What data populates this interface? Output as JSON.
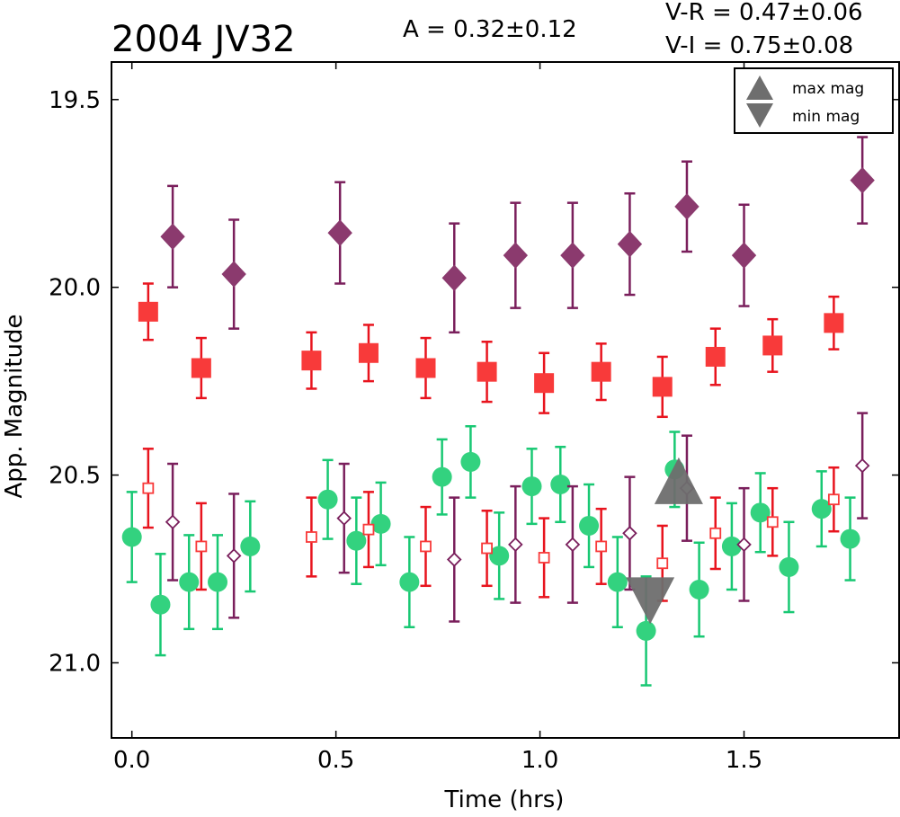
{
  "chart_data": {
    "type": "scatter",
    "title": "2004 JV32",
    "annotations": {
      "amplitude": "A  = 0.32±0.12",
      "v_r": "V-R = 0.47±0.06",
      "v_i": "V-I  = 0.75±0.08"
    },
    "xlabel": "Time (hrs)",
    "ylabel": "App. Magnitude",
    "xlim": [
      -0.05,
      1.88
    ],
    "ylim": [
      21.2,
      19.4
    ],
    "y_inverted": true,
    "xticks": [
      "0.0",
      "0.5",
      "1.0",
      "1.5"
    ],
    "xtick_values": [
      0.0,
      0.5,
      1.0,
      1.5
    ],
    "yticks": [
      "19.5",
      "20.0",
      "20.5",
      "21.0"
    ],
    "ytick_values": [
      19.5,
      20.0,
      20.5,
      21.0
    ],
    "legend": {
      "position": "top-right",
      "entries": [
        {
          "label": "max mag",
          "marker": "triangle-up"
        },
        {
          "label": "min mag",
          "marker": "triangle-down"
        }
      ]
    },
    "colors": {
      "I": "#7a1f5c",
      "I_face": "#8b3a6e",
      "R": "#e8141e",
      "R_face": "#f83a3a",
      "V": "#18c873",
      "V_face": "#33d27f",
      "extrema": "#6e6e6e"
    },
    "series": [
      {
        "band": "I",
        "marker": "diamond-filled",
        "points": [
          {
            "x": 0.1,
            "y": 19.865,
            "err": 0.135
          },
          {
            "x": 0.25,
            "y": 19.965,
            "err": 0.145
          },
          {
            "x": 0.51,
            "y": 19.855,
            "err": 0.135
          },
          {
            "x": 0.79,
            "y": 19.975,
            "err": 0.145
          },
          {
            "x": 0.94,
            "y": 19.915,
            "err": 0.14
          },
          {
            "x": 1.08,
            "y": 19.915,
            "err": 0.14
          },
          {
            "x": 1.22,
            "y": 19.885,
            "err": 0.135
          },
          {
            "x": 1.36,
            "y": 19.785,
            "err": 0.12
          },
          {
            "x": 1.5,
            "y": 19.915,
            "err": 0.135
          },
          {
            "x": 1.79,
            "y": 19.715,
            "err": 0.115
          }
        ]
      },
      {
        "band": "R",
        "marker": "square-filled",
        "points": [
          {
            "x": 0.04,
            "y": 20.065,
            "err": 0.075
          },
          {
            "x": 0.17,
            "y": 20.215,
            "err": 0.08
          },
          {
            "x": 0.44,
            "y": 20.195,
            "err": 0.075
          },
          {
            "x": 0.58,
            "y": 20.175,
            "err": 0.075
          },
          {
            "x": 0.72,
            "y": 20.215,
            "err": 0.08
          },
          {
            "x": 0.87,
            "y": 20.225,
            "err": 0.08
          },
          {
            "x": 1.01,
            "y": 20.255,
            "err": 0.08
          },
          {
            "x": 1.15,
            "y": 20.225,
            "err": 0.075
          },
          {
            "x": 1.3,
            "y": 20.265,
            "err": 0.08
          },
          {
            "x": 1.43,
            "y": 20.185,
            "err": 0.075
          },
          {
            "x": 1.57,
            "y": 20.155,
            "err": 0.07
          },
          {
            "x": 1.72,
            "y": 20.095,
            "err": 0.07
          }
        ]
      },
      {
        "band": "V",
        "marker": "circle-filled",
        "points": [
          {
            "x": 0.0,
            "y": 20.665,
            "err": 0.12
          },
          {
            "x": 0.07,
            "y": 20.845,
            "err": 0.135
          },
          {
            "x": 0.14,
            "y": 20.785,
            "err": 0.125
          },
          {
            "x": 0.21,
            "y": 20.785,
            "err": 0.125
          },
          {
            "x": 0.29,
            "y": 20.69,
            "err": 0.12
          },
          {
            "x": 0.48,
            "y": 20.565,
            "err": 0.105
          },
          {
            "x": 0.55,
            "y": 20.675,
            "err": 0.115
          },
          {
            "x": 0.61,
            "y": 20.63,
            "err": 0.11
          },
          {
            "x": 0.68,
            "y": 20.785,
            "err": 0.12
          },
          {
            "x": 0.76,
            "y": 20.505,
            "err": 0.1
          },
          {
            "x": 0.83,
            "y": 20.465,
            "err": 0.095
          },
          {
            "x": 0.9,
            "y": 20.715,
            "err": 0.115
          },
          {
            "x": 0.98,
            "y": 20.53,
            "err": 0.1
          },
          {
            "x": 1.05,
            "y": 20.525,
            "err": 0.1
          },
          {
            "x": 1.12,
            "y": 20.635,
            "err": 0.11
          },
          {
            "x": 1.19,
            "y": 20.785,
            "err": 0.12
          },
          {
            "x": 1.26,
            "y": 20.915,
            "err": 0.145
          },
          {
            "x": 1.33,
            "y": 20.485,
            "err": 0.1
          },
          {
            "x": 1.39,
            "y": 20.805,
            "err": 0.125
          },
          {
            "x": 1.47,
            "y": 20.69,
            "err": 0.115
          },
          {
            "x": 1.54,
            "y": 20.6,
            "err": 0.105
          },
          {
            "x": 1.61,
            "y": 20.745,
            "err": 0.12
          },
          {
            "x": 1.69,
            "y": 20.59,
            "err": 0.1
          },
          {
            "x": 1.76,
            "y": 20.67,
            "err": 0.11
          }
        ]
      },
      {
        "band": "R",
        "marker": "square-open",
        "points": [
          {
            "x": 0.04,
            "y": 20.535,
            "err": 0.105
          },
          {
            "x": 0.17,
            "y": 20.69,
            "err": 0.115
          },
          {
            "x": 0.44,
            "y": 20.665,
            "err": 0.105
          },
          {
            "x": 0.58,
            "y": 20.645,
            "err": 0.1
          },
          {
            "x": 0.72,
            "y": 20.69,
            "err": 0.105
          },
          {
            "x": 0.87,
            "y": 20.695,
            "err": 0.1
          },
          {
            "x": 1.01,
            "y": 20.72,
            "err": 0.105
          },
          {
            "x": 1.15,
            "y": 20.69,
            "err": 0.1
          },
          {
            "x": 1.3,
            "y": 20.735,
            "err": 0.1
          },
          {
            "x": 1.43,
            "y": 20.655,
            "err": 0.095
          },
          {
            "x": 1.57,
            "y": 20.625,
            "err": 0.09
          },
          {
            "x": 1.72,
            "y": 20.565,
            "err": 0.085
          }
        ]
      },
      {
        "band": "I",
        "marker": "diamond-open",
        "points": [
          {
            "x": 0.1,
            "y": 20.625,
            "err": 0.155
          },
          {
            "x": 0.25,
            "y": 20.715,
            "err": 0.165
          },
          {
            "x": 0.52,
            "y": 20.615,
            "err": 0.145
          },
          {
            "x": 0.79,
            "y": 20.725,
            "err": 0.165
          },
          {
            "x": 0.94,
            "y": 20.685,
            "err": 0.155
          },
          {
            "x": 1.08,
            "y": 20.685,
            "err": 0.155
          },
          {
            "x": 1.22,
            "y": 20.655,
            "err": 0.15
          },
          {
            "x": 1.36,
            "y": 20.535,
            "err": 0.14
          },
          {
            "x": 1.5,
            "y": 20.685,
            "err": 0.15
          },
          {
            "x": 1.79,
            "y": 20.475,
            "err": 0.14
          }
        ]
      }
    ],
    "extrema": [
      {
        "type": "max mag",
        "marker": "triangle-up",
        "x": 1.34,
        "y": 20.52
      },
      {
        "type": "min mag",
        "marker": "triangle-down",
        "x": 1.27,
        "y": 20.83
      }
    ]
  }
}
